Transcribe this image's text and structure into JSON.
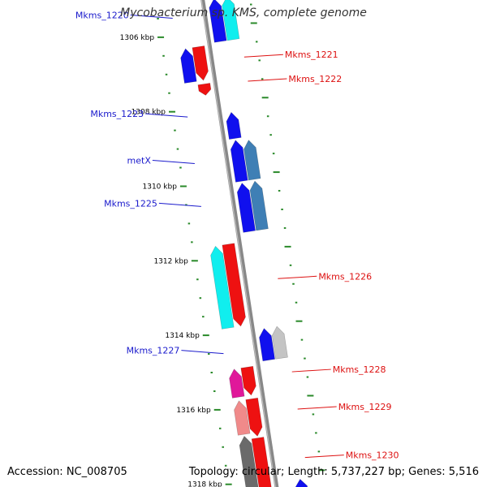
{
  "title": "Mycobacterium sp. KMS, complete genome",
  "footer": {
    "accession": "Accession: NC_008705",
    "stats": "Topology: circular; Length: 5,737,227 bp; Genes: 5,516"
  },
  "colors": {
    "backbone": "#888888",
    "tick": "#2a8a2a",
    "left_label": "#1a1acc",
    "right_label": "#dd1111",
    "blue": "#1010ee",
    "cyan": "#10eeee",
    "red": "#ee1111",
    "steelblue": "#3f7fb5",
    "silver": "#c4c4c4",
    "magenta": "#e0189a",
    "pink": "#f08a8a",
    "darkgray": "#6a6a6a"
  },
  "ruler": {
    "start_kbp": 1305.2,
    "end_kbp": 1318.6,
    "major_step_kbp": 2,
    "minor_per_major": 4,
    "ticks": [
      {
        "kbp": 1306,
        "label": "1306 kbp"
      },
      {
        "kbp": 1308,
        "label": "1308 kbp"
      },
      {
        "kbp": 1310,
        "label": "1310 kbp"
      },
      {
        "kbp": 1312,
        "label": "1312 kbp"
      },
      {
        "kbp": 1314,
        "label": "1314 kbp"
      },
      {
        "kbp": 1316,
        "label": "1316 kbp"
      },
      {
        "kbp": 1318,
        "label": "1318 kbp"
      }
    ]
  },
  "features": [
    {
      "lane": -2,
      "strand": "fwd",
      "start": 1305.2,
      "end": 1306.35,
      "color": "cyan"
    },
    {
      "lane": -1,
      "strand": "fwd",
      "start": 1305.2,
      "end": 1306.35,
      "color": "blue"
    },
    {
      "lane": 1,
      "strand": "rev",
      "start": 1306.4,
      "end": 1307.3,
      "color": "red"
    },
    {
      "lane": 2,
      "strand": "fwd",
      "start": 1306.4,
      "end": 1307.3,
      "color": "blue"
    },
    {
      "lane": 1,
      "strand": "rev",
      "start": 1307.4,
      "end": 1307.7,
      "color": "red"
    },
    {
      "lane": -1,
      "strand": "fwd",
      "start": 1308.25,
      "end": 1308.95,
      "color": "blue"
    },
    {
      "lane": -2,
      "strand": "fwd",
      "start": 1309.05,
      "end": 1310.1,
      "color": "steelblue"
    },
    {
      "lane": -1,
      "strand": "fwd",
      "start": 1309.0,
      "end": 1310.1,
      "color": "blue"
    },
    {
      "lane": -2,
      "strand": "fwd",
      "start": 1310.15,
      "end": 1311.45,
      "color": "steelblue"
    },
    {
      "lane": -1,
      "strand": "fwd",
      "start": 1310.15,
      "end": 1311.45,
      "color": "blue"
    },
    {
      "lane": 1,
      "strand": "rev",
      "start": 1311.7,
      "end": 1313.9,
      "color": "red"
    },
    {
      "lane": 2,
      "strand": "fwd",
      "start": 1311.7,
      "end": 1313.9,
      "color": "cyan"
    },
    {
      "lane": -2,
      "strand": "fwd",
      "start": 1314.05,
      "end": 1314.9,
      "color": "silver"
    },
    {
      "lane": -1,
      "strand": "fwd",
      "start": 1314.05,
      "end": 1314.9,
      "color": "blue"
    },
    {
      "lane": 1,
      "strand": "rev",
      "start": 1315.0,
      "end": 1315.75,
      "color": "red"
    },
    {
      "lane": 2,
      "strand": "fwd",
      "start": 1315.0,
      "end": 1315.75,
      "color": "magenta"
    },
    {
      "lane": 1,
      "strand": "rev",
      "start": 1315.85,
      "end": 1316.85,
      "color": "red"
    },
    {
      "lane": 2,
      "strand": "fwd",
      "start": 1315.85,
      "end": 1316.75,
      "color": "pink"
    },
    {
      "lane": 1,
      "strand": "rev",
      "start": 1316.9,
      "end": 1318.6,
      "color": "red"
    },
    {
      "lane": 2,
      "strand": "fwd",
      "start": 1316.8,
      "end": 1318.6,
      "color": "darkgray"
    },
    {
      "lane": -2,
      "strand": "fwd",
      "start": 1318.15,
      "end": 1318.6,
      "color": "blue"
    }
  ],
  "gene_labels": [
    {
      "text": "Mkms_1220",
      "side": "left",
      "kbp": 1305.55
    },
    {
      "text": "Mkms_1223",
      "side": "left",
      "kbp": 1308.2
    },
    {
      "text": "metX",
      "side": "left",
      "kbp": 1309.45
    },
    {
      "text": "Mkms_1225",
      "side": "left",
      "kbp": 1310.6
    },
    {
      "text": "Mkms_1227",
      "side": "left",
      "kbp": 1314.55
    },
    {
      "text": "Mkms_1221",
      "side": "right",
      "kbp": 1306.85
    },
    {
      "text": "Mkms_1222",
      "side": "right",
      "kbp": 1307.5
    },
    {
      "text": "Mkms_1226",
      "side": "right",
      "kbp": 1312.8
    },
    {
      "text": "Mkms_1228",
      "side": "right",
      "kbp": 1315.3
    },
    {
      "text": "Mkms_1229",
      "side": "right",
      "kbp": 1316.3
    },
    {
      "text": "Mkms_1230",
      "side": "right",
      "kbp": 1317.6
    }
  ]
}
